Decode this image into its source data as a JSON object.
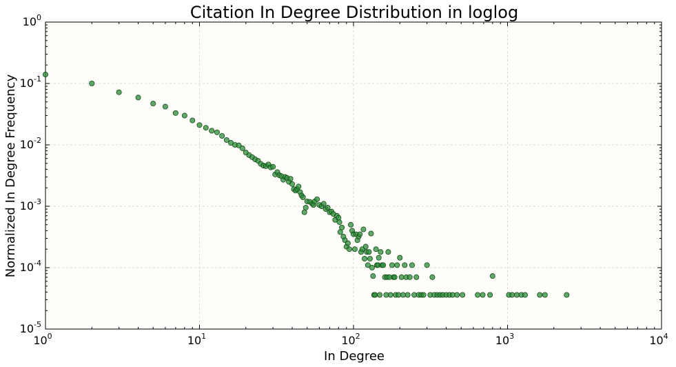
{
  "chart_data": {
    "type": "scatter",
    "title": "Citation In Degree Distribution in loglog",
    "xlabel": "In Degree",
    "ylabel": "Normalized In Degree Frequency",
    "xscale": "log",
    "yscale": "log",
    "xlim": [
      1,
      10000
    ],
    "ylim": [
      1e-05,
      1
    ],
    "grid": true,
    "x_ticks": [
      {
        "base": "10",
        "exp": "0"
      },
      {
        "base": "10",
        "exp": "1"
      },
      {
        "base": "10",
        "exp": "2"
      },
      {
        "base": "10",
        "exp": "3"
      },
      {
        "base": "10",
        "exp": "4"
      }
    ],
    "y_ticks": [
      {
        "base": "10",
        "exp": "-5"
      },
      {
        "base": "10",
        "exp": "-4"
      },
      {
        "base": "10",
        "exp": "-3"
      },
      {
        "base": "10",
        "exp": "-2"
      },
      {
        "base": "10",
        "exp": "-1"
      },
      {
        "base": "10",
        "exp": "0"
      }
    ],
    "colors": {
      "marker": "#2e8b3a",
      "marker_edge": "#0f4a14",
      "plot_bg": "#fffdf9"
    },
    "series": [
      {
        "points": [
          [
            1,
            0.14
          ],
          [
            2,
            0.1
          ],
          [
            3,
            0.072
          ],
          [
            4,
            0.059
          ],
          [
            5,
            0.047
          ],
          [
            6,
            0.042
          ],
          [
            7,
            0.033
          ],
          [
            8,
            0.03
          ],
          [
            9,
            0.025
          ],
          [
            10,
            0.021
          ],
          [
            11,
            0.019
          ],
          [
            12,
            0.017
          ],
          [
            13,
            0.016
          ],
          [
            14,
            0.014
          ],
          [
            15,
            0.012
          ],
          [
            16,
            0.0108
          ],
          [
            17,
            0.01
          ],
          [
            18,
            0.0098
          ],
          [
            19,
            0.0088
          ],
          [
            20,
            0.0075
          ],
          [
            21,
            0.0068
          ],
          [
            22,
            0.0063
          ],
          [
            23,
            0.0058
          ],
          [
            24,
            0.0055
          ],
          [
            25,
            0.0049
          ],
          [
            26,
            0.0046
          ],
          [
            27,
            0.0045
          ],
          [
            28,
            0.0048
          ],
          [
            29,
            0.0043
          ],
          [
            30,
            0.0044
          ],
          [
            31,
            0.0033
          ],
          [
            32,
            0.0036
          ],
          [
            33,
            0.0032
          ],
          [
            34,
            0.0031
          ],
          [
            35,
            0.0027
          ],
          [
            36,
            0.003
          ],
          [
            37,
            0.0029
          ],
          [
            38,
            0.0025
          ],
          [
            39,
            0.0028
          ],
          [
            40,
            0.0023
          ],
          [
            41,
            0.0019
          ],
          [
            42,
            0.0018
          ],
          [
            43,
            0.0019
          ],
          [
            44,
            0.0021
          ],
          [
            45,
            0.0017
          ],
          [
            46,
            0.0015
          ],
          [
            47,
            0.0014
          ],
          [
            48,
            0.0008
          ],
          [
            49,
            0.00095
          ],
          [
            50,
            0.0012
          ],
          [
            52,
            0.00118
          ],
          [
            54,
            0.0011
          ],
          [
            55,
            0.00105
          ],
          [
            56,
            0.0012
          ],
          [
            58,
            0.0013
          ],
          [
            60,
            0.00105
          ],
          [
            62,
            0.001
          ],
          [
            64,
            0.0011
          ],
          [
            66,
            0.0009
          ],
          [
            68,
            0.00095
          ],
          [
            70,
            0.0008
          ],
          [
            72,
            0.00082
          ],
          [
            74,
            0.00075
          ],
          [
            76,
            0.0006
          ],
          [
            78,
            0.0007
          ],
          [
            80,
            0.00065
          ],
          [
            81,
            0.00055
          ],
          [
            82,
            0.00038
          ],
          [
            84,
            0.00045
          ],
          [
            86,
            0.00032
          ],
          [
            88,
            0.00028
          ],
          [
            90,
            0.00022
          ],
          [
            92,
            0.00025
          ],
          [
            94,
            0.0002
          ],
          [
            96,
            0.0005
          ],
          [
            98,
            0.0004
          ],
          [
            100,
            0.00035
          ],
          [
            102,
            0.0002
          ],
          [
            104,
            0.00035
          ],
          [
            106,
            0.00028
          ],
          [
            108,
            0.00032
          ],
          [
            110,
            0.00035
          ],
          [
            112,
            0.00018
          ],
          [
            114,
            0.0002
          ],
          [
            116,
            0.00042
          ],
          [
            118,
            0.00014
          ],
          [
            120,
            0.00022
          ],
          [
            122,
            0.00018
          ],
          [
            124,
            0.00011
          ],
          [
            126,
            0.00018
          ],
          [
            128,
            0.00014
          ],
          [
            130,
            0.00036
          ],
          [
            132,
            0.0001
          ],
          [
            134,
            7.3e-05
          ],
          [
            136,
            3.6e-05
          ],
          [
            138,
            3.6e-05
          ],
          [
            140,
            0.0002
          ],
          [
            142,
            0.00011
          ],
          [
            144,
            0.00011
          ],
          [
            146,
            0.000145
          ],
          [
            148,
            3.6e-05
          ],
          [
            150,
            0.00018
          ],
          [
            153,
            0.00011
          ],
          [
            156,
            0.00011
          ],
          [
            160,
            7e-05
          ],
          [
            163,
            3.6e-05
          ],
          [
            165,
            7e-05
          ],
          [
            168,
            0.00018
          ],
          [
            171,
            7e-05
          ],
          [
            174,
            3.6e-05
          ],
          [
            178,
            0.00011
          ],
          [
            182,
            7e-05
          ],
          [
            185,
            7e-05
          ],
          [
            188,
            3.6e-05
          ],
          [
            192,
            0.00011
          ],
          [
            196,
            3.6e-05
          ],
          [
            200,
            0.000145
          ],
          [
            205,
            7e-05
          ],
          [
            210,
            3.6e-05
          ],
          [
            215,
            0.00011
          ],
          [
            220,
            7e-05
          ],
          [
            225,
            3.6e-05
          ],
          [
            232,
            7e-05
          ],
          [
            240,
            0.00011
          ],
          [
            248,
            3.6e-05
          ],
          [
            256,
            7e-05
          ],
          [
            265,
            3.6e-05
          ],
          [
            275,
            3.6e-05
          ],
          [
            285,
            3.6e-05
          ],
          [
            300,
            0.00011
          ],
          [
            315,
            3.6e-05
          ],
          [
            325,
            7e-05
          ],
          [
            335,
            3.6e-05
          ],
          [
            350,
            3.6e-05
          ],
          [
            365,
            3.6e-05
          ],
          [
            380,
            3.6e-05
          ],
          [
            400,
            3.6e-05
          ],
          [
            420,
            3.6e-05
          ],
          [
            440,
            3.6e-05
          ],
          [
            470,
            3.6e-05
          ],
          [
            510,
            3.6e-05
          ],
          [
            640,
            3.6e-05
          ],
          [
            690,
            3.6e-05
          ],
          [
            770,
            3.6e-05
          ],
          [
            800,
            7.3e-05
          ],
          [
            1020,
            3.6e-05
          ],
          [
            1070,
            3.6e-05
          ],
          [
            1150,
            3.6e-05
          ],
          [
            1230,
            3.6e-05
          ],
          [
            1300,
            3.6e-05
          ],
          [
            1620,
            3.6e-05
          ],
          [
            1750,
            3.6e-05
          ],
          [
            2420,
            3.6e-05
          ]
        ]
      }
    ]
  }
}
